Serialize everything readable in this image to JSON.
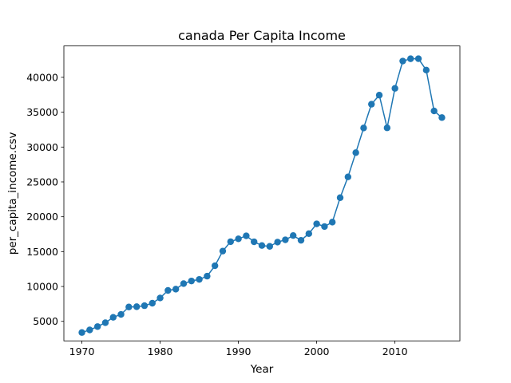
{
  "chart_data": {
    "type": "line",
    "title": "canada Per Capita Income",
    "xlabel": "Year",
    "ylabel": "per_capita_income.csv",
    "xlim": [
      1967.7,
      2018.3
    ],
    "ylim": [
      2200,
      44500
    ],
    "xticks": [
      1970,
      1980,
      1990,
      2000,
      2010
    ],
    "yticks": [
      5000,
      10000,
      15000,
      20000,
      25000,
      30000,
      35000,
      40000
    ],
    "xtick_labels": [
      "1970",
      "1980",
      "1990",
      "2000",
      "2010"
    ],
    "ytick_labels": [
      "5000",
      "10000",
      "15000",
      "20000",
      "25000",
      "30000",
      "35000",
      "40000"
    ],
    "grid": false,
    "color": "#1f77b4",
    "marker": "circle",
    "series": [
      {
        "x": [
          1970,
          1971,
          1972,
          1973,
          1974,
          1975,
          1976,
          1977,
          1978,
          1979,
          1980,
          1981,
          1982,
          1983,
          1984,
          1985,
          1986,
          1987,
          1988,
          1989,
          1990,
          1991,
          1992,
          1993,
          1994,
          1995,
          1996,
          1997,
          1998,
          1999,
          2000,
          2001,
          2002,
          2003,
          2004,
          2005,
          2006,
          2007,
          2008,
          2009,
          2010,
          2011,
          2012,
          2013,
          2014,
          2015,
          2016
        ],
        "y": [
          3399,
          3768,
          4251,
          4804,
          5577,
          5998,
          7062,
          7100,
          7247,
          7602,
          8355,
          9434,
          9619,
          10416,
          10790,
          11018,
          11482,
          12974,
          15080,
          16426,
          16838,
          17266,
          16412,
          15875,
          15755,
          16369,
          16699,
          17310,
          16623,
          17581,
          18987,
          18601,
          19232,
          22739,
          25719,
          29198,
          32738,
          36144,
          37446,
          32755,
          38420,
          42334,
          42665,
          42676,
          41039,
          35175,
          34229
        ]
      }
    ]
  }
}
